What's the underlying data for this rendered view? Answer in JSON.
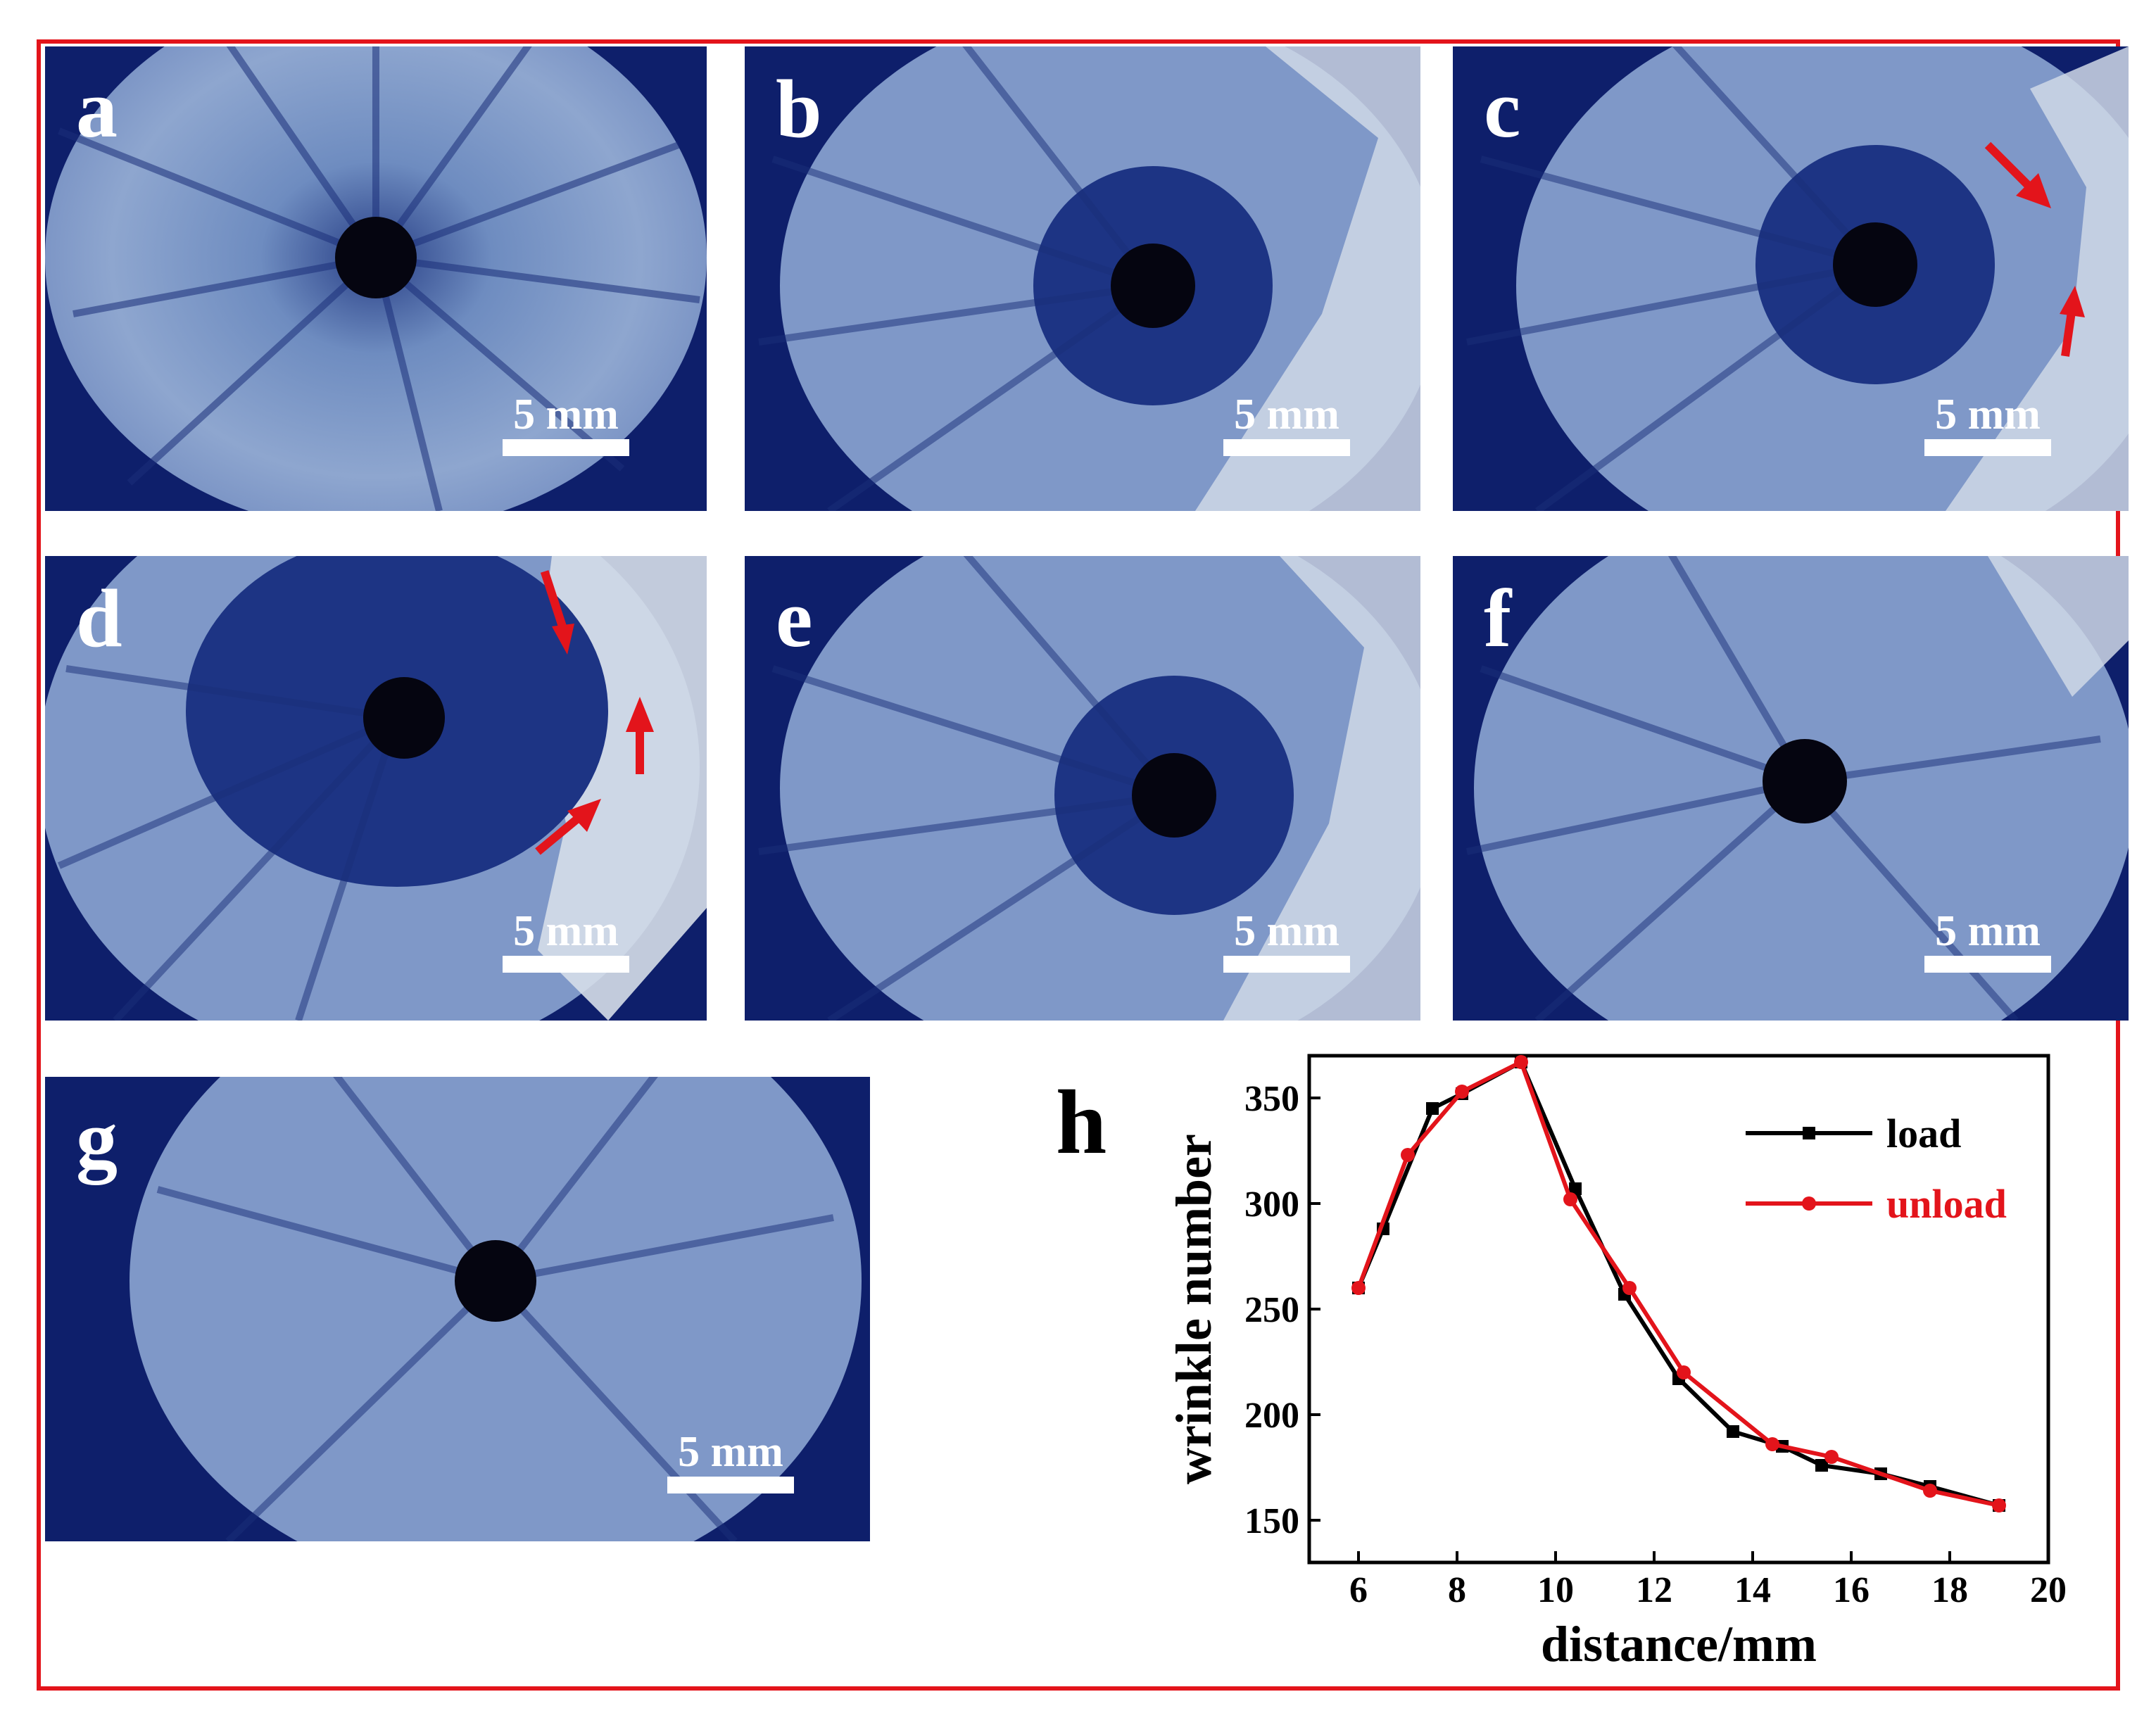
{
  "figure": {
    "panels": [
      {
        "label": "a",
        "scale_text": "5 mm"
      },
      {
        "label": "b",
        "scale_text": "5 mm"
      },
      {
        "label": "c",
        "scale_text": "5 mm"
      },
      {
        "label": "d",
        "scale_text": "5 mm"
      },
      {
        "label": "e",
        "scale_text": "5 mm"
      },
      {
        "label": "f",
        "scale_text": "5 mm"
      },
      {
        "label": "g",
        "scale_text": "5 mm"
      }
    ],
    "chart_label": "h"
  },
  "colors": {
    "frame": "#e3141b",
    "background_blue": "#0e1f6b",
    "disc_blue": "#5f7fb6",
    "arrow": "#e3141b",
    "load": "#000000",
    "unload": "#e3141b"
  },
  "chart_data": {
    "type": "line",
    "xlabel": "distance/mm",
    "ylabel": "wrinkle number",
    "xlim": [
      5,
      20
    ],
    "ylim": [
      130,
      370
    ],
    "xticks": [
      6,
      8,
      10,
      12,
      14,
      16,
      18,
      20
    ],
    "yticks": [
      150,
      200,
      250,
      300,
      350
    ],
    "legend_position": "top-right",
    "series": [
      {
        "name": "load",
        "color": "#000000",
        "marker": "square",
        "x": [
          6.0,
          6.5,
          7.5,
          8.1,
          9.3,
          10.4,
          11.4,
          12.5,
          13.6,
          14.6,
          15.4,
          16.6,
          17.6,
          19.0
        ],
        "y": [
          260,
          288,
          345,
          352,
          367,
          307,
          257,
          217,
          192,
          185,
          176,
          172,
          166,
          157
        ]
      },
      {
        "name": "unload",
        "color": "#e3141b",
        "marker": "circle",
        "x": [
          6.0,
          7.0,
          8.1,
          9.3,
          10.3,
          11.5,
          12.6,
          14.4,
          15.6,
          17.6,
          19.0
        ],
        "y": [
          260,
          323,
          353,
          367,
          302,
          260,
          220,
          186,
          180,
          164,
          157
        ]
      }
    ]
  }
}
